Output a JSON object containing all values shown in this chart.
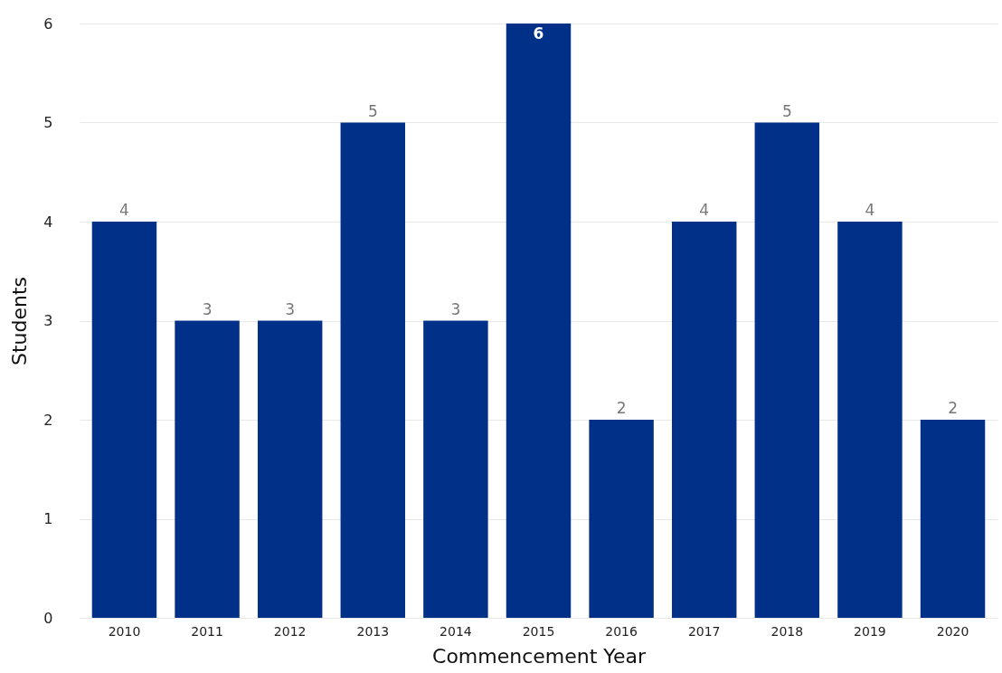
{
  "chart_data": {
    "type": "bar",
    "xlabel": "Commencement Year",
    "ylabel": "Students",
    "categories": [
      "2010",
      "2011",
      "2012",
      "2013",
      "2014",
      "2015",
      "2016",
      "2017",
      "2018",
      "2019",
      "2020"
    ],
    "values": [
      4,
      3,
      3,
      5,
      3,
      6,
      2,
      4,
      5,
      4,
      2
    ],
    "color": "#003087",
    "ylim": [
      0,
      6
    ],
    "yticks": [
      0,
      1,
      2,
      3,
      4,
      5,
      6
    ],
    "grid": "y",
    "data_labels": true
  }
}
